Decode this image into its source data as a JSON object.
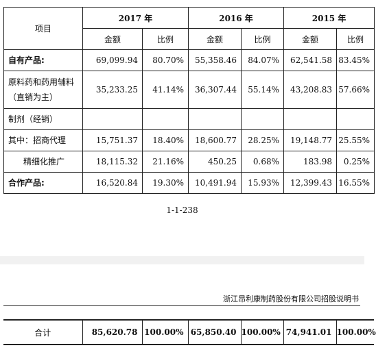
{
  "table": {
    "item_header": "项目",
    "years": [
      "2017 年",
      "2016 年",
      "2015 年"
    ],
    "sub_amount": "金额",
    "sub_ratio": "比例",
    "rows": [
      {
        "label": "自有产品:",
        "cells": [
          "69,099.94",
          "80.70%",
          "55,358.46",
          "84.07%",
          "62,541.58",
          "83.45%"
        ]
      },
      {
        "label": "原料药和药用辅料（直销为主）",
        "cells": [
          "35,233.25",
          "41.14%",
          "36,307.44",
          "55.14%",
          "43,208.83",
          "57.66%"
        ]
      },
      {
        "label": "制剂（经销）",
        "cells": [
          "",
          "",
          "",
          "",
          "",
          ""
        ]
      },
      {
        "label": "其中：招商代理",
        "cells": [
          "15,751.37",
          "18.40%",
          "18,600.77",
          "28.25%",
          "19,148.77",
          "25.55%"
        ]
      },
      {
        "label": "精细化推广",
        "cells": [
          "18,115.32",
          "21.16%",
          "450.25",
          "0.68%",
          "183.98",
          "0.25%"
        ]
      },
      {
        "label": "合作产品:",
        "cells": [
          "16,520.84",
          "19.30%",
          "10,491.94",
          "15.93%",
          "12,399.43",
          "16.55%"
        ]
      }
    ]
  },
  "page_number": "1-1-238",
  "document_title": "浙江昂利康制药股份有限公司招股说明书",
  "total_row": {
    "label": "合计",
    "cells": [
      "85,620.78",
      "100.00%",
      "65,850.40",
      "100.00%",
      "74,941.01",
      "100.00%"
    ]
  }
}
